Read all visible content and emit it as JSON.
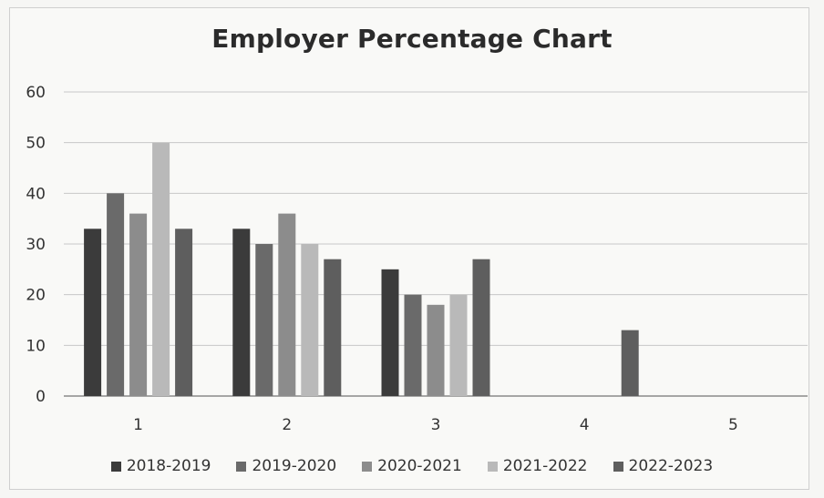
{
  "chart_data": {
    "type": "bar",
    "title": "Employer Percentage  Chart",
    "categories": [
      "1",
      "2",
      "3",
      "4",
      "5"
    ],
    "ylim": [
      0,
      60
    ],
    "yticks": [
      "0",
      "10",
      "20",
      "30",
      "40",
      "50",
      "60"
    ],
    "grid": true,
    "legend_position": "bottom",
    "series": [
      {
        "name": "2018-2019",
        "color": "#3b3b3b",
        "values": [
          33,
          33,
          25,
          null,
          null
        ]
      },
      {
        "name": "2019-2020",
        "color": "#6a6a6a",
        "values": [
          40,
          30,
          20,
          null,
          null
        ]
      },
      {
        "name": "2020-2021",
        "color": "#8c8c8c",
        "values": [
          36,
          36,
          18,
          null,
          null
        ]
      },
      {
        "name": "2021-2022",
        "color": "#b9b9b9",
        "values": [
          50,
          30,
          20,
          null,
          null
        ]
      },
      {
        "name": "2022-2023",
        "color": "#5e5e5e",
        "values": [
          33,
          27,
          27,
          13,
          null
        ]
      }
    ]
  }
}
